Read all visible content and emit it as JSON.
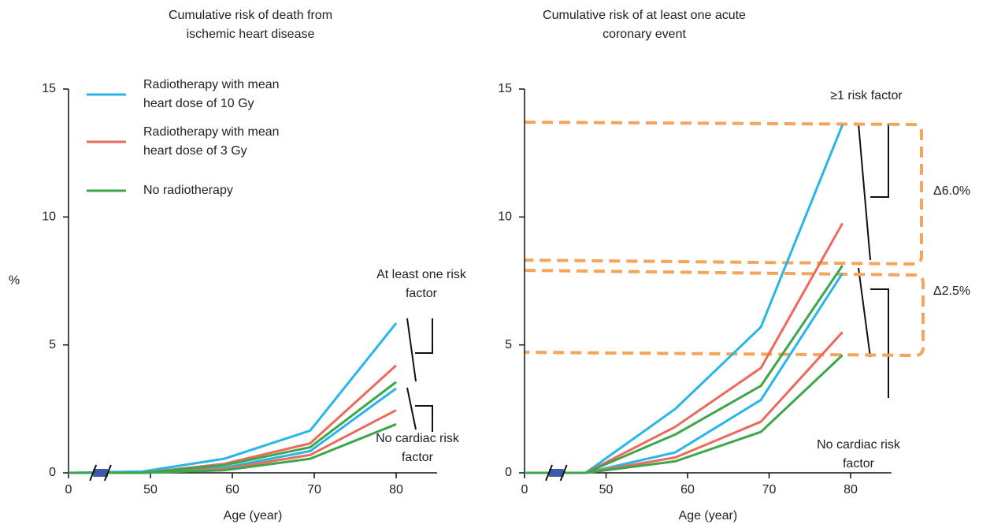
{
  "chart_data": [
    {
      "type": "line",
      "title": "Cumulative risk of death from ischemic heart disease",
      "xlabel": "Age (year)",
      "ylabel": "%",
      "x": [
        0,
        49,
        59,
        69.5,
        80
      ],
      "xlim": [
        0,
        85
      ],
      "xticks": [
        0,
        50,
        60,
        70,
        80
      ],
      "ylim": [
        0,
        15
      ],
      "yticks": [
        0,
        5,
        10,
        15
      ],
      "axis_break": true,
      "legend_position": "upper left",
      "annotations": [
        "At least one risk factor",
        "No cardiac risk factor"
      ],
      "series": [
        {
          "name": "Radiotherapy with mean heart dose of 10 Gy",
          "color": "#29b5e8",
          "values": [
            0,
            0.05,
            0.55,
            1.65,
            5.85
          ],
          "values_no_risk_factor": [
            0,
            0,
            0.2,
            0.85,
            3.3
          ]
        },
        {
          "name": "Radiotherapy with mean heart dose of 3 Gy",
          "color": "#ec6a5c",
          "values": [
            0,
            0,
            0.35,
            1.15,
            4.2
          ],
          "values_no_risk_factor": [
            0,
            0,
            0.15,
            0.7,
            2.45
          ]
        },
        {
          "name": "No radiotherapy",
          "color": "#3ea64a",
          "values": [
            0,
            0,
            0.3,
            1.0,
            3.55
          ],
          "values_no_risk_factor": [
            0,
            0,
            0.1,
            0.55,
            1.9
          ]
        }
      ]
    },
    {
      "type": "line",
      "title": "Cumulative risk of at least one acute coronary event",
      "xlabel": "Age (year)",
      "x": [
        0,
        47.5,
        58.5,
        69,
        79
      ],
      "xlim": [
        0,
        85
      ],
      "xticks": [
        0,
        50,
        60,
        70,
        80
      ],
      "ylim": [
        0,
        15
      ],
      "yticks": [
        0,
        5,
        10,
        15
      ],
      "axis_break": true,
      "annotations": [
        "≥1 risk factor",
        "No cardiac risk factor",
        "Δ6.0%",
        "Δ2.5%"
      ],
      "series": [
        {
          "color": "#29b5e8",
          "values": [
            0,
            0,
            2.5,
            5.7,
            13.6
          ],
          "values_no_risk_factor": [
            0,
            0,
            0.8,
            2.85,
            7.8
          ]
        },
        {
          "color": "#ec6a5c",
          "values": [
            0,
            0,
            1.8,
            4.1,
            9.75
          ],
          "values_no_risk_factor": [
            0,
            0,
            0.6,
            2.0,
            5.5
          ]
        },
        {
          "color": "#3ea64a",
          "values": [
            0,
            0,
            1.5,
            3.4,
            8.1
          ],
          "values_no_risk_factor": [
            0,
            0,
            0.45,
            1.6,
            4.6
          ]
        }
      ]
    }
  ]
}
